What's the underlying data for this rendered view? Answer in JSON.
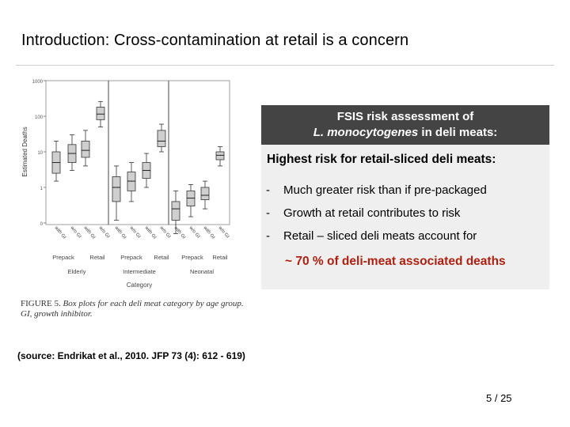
{
  "slide": {
    "title": "Introduction: Cross-contamination at retail is a concern",
    "source_note": "(source: Endrikat et al., 2010. JFP 73 (4): 612 - 619)",
    "page_number": "5 / 25"
  },
  "figure": {
    "caption_label": "FIGURE 5.",
    "caption_text_1": " Box plots for each deli meat category by age group.",
    "caption_text_2": "GI, growth inhibitor."
  },
  "panel": {
    "header_line1": "FSIS risk assessment  of",
    "header_line2_italic": "L. monocytogenes",
    "header_line2_rest": " in deli meats:",
    "subhead": "Highest risk for retail-sliced deli meats:",
    "bullets": [
      {
        "dash": "-",
        "text": "Much greater risk than if pre-packaged"
      },
      {
        "dash": "-",
        "text": "Growth at retail contributes to risk"
      },
      {
        "dash": "-",
        "text": "Retail – sliced deli meats account for"
      }
    ],
    "highlight": "~ 70 % of deli-meat associated deaths"
  },
  "chart_data": {
    "type": "box",
    "ylabel": "Estimated Deaths",
    "xlabel": "Category",
    "y_scale": "log",
    "y_ticks": [
      "1000",
      "100",
      "10",
      "1",
      "0"
    ],
    "groups": [
      "Elderly",
      "Intermediate",
      "Neonatal"
    ],
    "categories": [
      "Prepack",
      "Retail",
      "Prepack",
      "Retail",
      "Prepack",
      "Retail"
    ],
    "box_labels": [
      "with GI",
      "w/o GI",
      "with GI",
      "w/o GI",
      "with GI",
      "w/o GI",
      "with GI",
      "w/o GI",
      "with GI",
      "w/o GI",
      "with GI",
      "w/o GI"
    ],
    "boxes": [
      {
        "group": "Elderly",
        "category": "Prepack",
        "treatment": "with GI",
        "min": 1.5,
        "q1": 2.5,
        "median": 5,
        "q3": 10,
        "max": 20
      },
      {
        "group": "Elderly",
        "category": "Prepack",
        "treatment": "w/o GI",
        "min": 3,
        "q1": 5,
        "median": 9,
        "q3": 16,
        "max": 30
      },
      {
        "group": "Elderly",
        "category": "Retail",
        "treatment": "with GI",
        "min": 4,
        "q1": 7,
        "median": 11,
        "q3": 20,
        "max": 40
      },
      {
        "group": "Elderly",
        "category": "Retail",
        "treatment": "w/o GI",
        "min": 50,
        "q1": 80,
        "median": 115,
        "q3": 180,
        "max": 260
      },
      {
        "group": "Intermediate",
        "category": "Prepack",
        "treatment": "with GI",
        "min": 0.12,
        "q1": 0.4,
        "median": 1,
        "q3": 2,
        "max": 4
      },
      {
        "group": "Intermediate",
        "category": "Prepack",
        "treatment": "w/o GI",
        "min": 0.4,
        "q1": 0.8,
        "median": 1.5,
        "q3": 2.7,
        "max": 5
      },
      {
        "group": "Intermediate",
        "category": "Retail",
        "treatment": "with GI",
        "min": 1,
        "q1": 1.8,
        "median": 3,
        "q3": 5,
        "max": 9
      },
      {
        "group": "Intermediate",
        "category": "Retail",
        "treatment": "w/o GI",
        "min": 10,
        "q1": 14,
        "median": 20,
        "q3": 40,
        "max": 60
      },
      {
        "group": "Neonatal",
        "category": "Prepack",
        "treatment": "with GI",
        "min": 0.05,
        "q1": 0.12,
        "median": 0.25,
        "q3": 0.4,
        "max": 0.8
      },
      {
        "group": "Neonatal",
        "category": "Prepack",
        "treatment": "w/o GI",
        "min": 0.15,
        "q1": 0.3,
        "median": 0.5,
        "q3": 0.8,
        "max": 1.2
      },
      {
        "group": "Neonatal",
        "category": "Retail",
        "treatment": "with GI",
        "min": 0.25,
        "q1": 0.45,
        "median": 0.6,
        "q3": 1,
        "max": 1.5
      },
      {
        "group": "Neonatal",
        "category": "Retail",
        "treatment": "w/o GI",
        "min": 4,
        "q1": 6,
        "median": 8,
        "q3": 10,
        "max": 14
      }
    ]
  },
  "colors": {
    "box_fill": "#cfcfcf",
    "panel_header": "#444444",
    "panel_bg": "#efefef",
    "highlight": "#b02010"
  }
}
